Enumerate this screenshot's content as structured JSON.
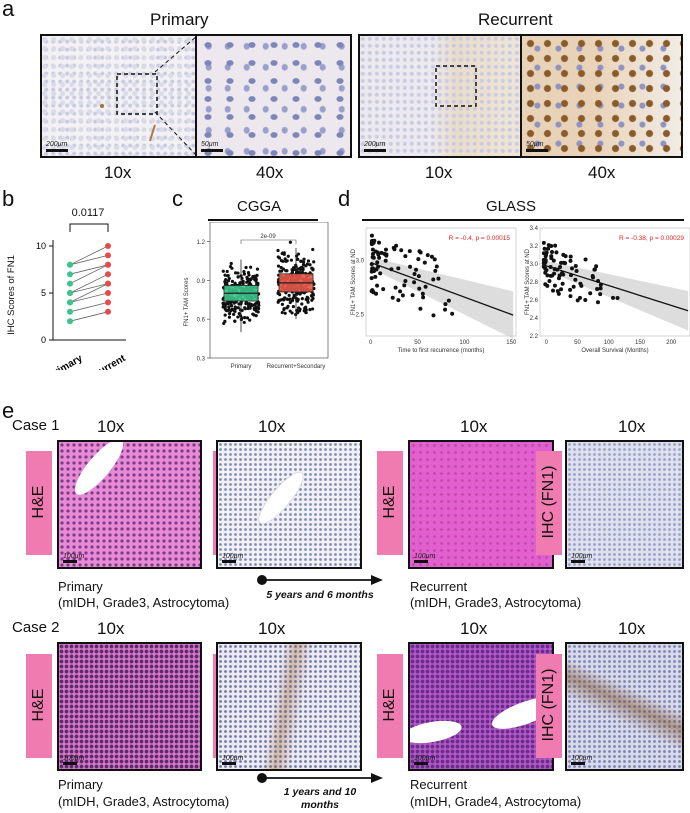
{
  "panel_a": {
    "letter": "a",
    "primary_title": "Primary",
    "recurrent_title": "Recurrent",
    "mag_10x": "10x",
    "mag_40x": "40x",
    "scale_200": "200μm",
    "scale_50": "50μm"
  },
  "panel_b": {
    "letter": "b",
    "p_value": "0.0117",
    "ylabel": "IHC Scores of FN1",
    "chart_data": {
      "type": "line",
      "title": "",
      "ylabel": "IHC Scores of FN1",
      "categories": [
        "Primary",
        "Recurrent"
      ],
      "ylim": [
        0,
        10
      ],
      "yticks": [
        "0",
        "5",
        "10"
      ],
      "pairs": [
        [
          8,
          10
        ],
        [
          8,
          9
        ],
        [
          7,
          8
        ],
        [
          6,
          8
        ],
        [
          5,
          7
        ],
        [
          5,
          6
        ],
        [
          4,
          6
        ],
        [
          4,
          5
        ],
        [
          3,
          4
        ],
        [
          2,
          3
        ]
      ],
      "colors": {
        "primary": "#3cc48c",
        "recurrent": "#e84a4a"
      }
    }
  },
  "panel_c": {
    "letter": "c",
    "title": "CGGA",
    "pval": "2e-09",
    "ylabel": "FN1+ TAM Scores",
    "chart_data": {
      "type": "box",
      "categories": [
        "Primary",
        "Recurrent+Secondary"
      ],
      "yticks": [
        "0.3",
        "0.6",
        "0.9",
        "1.2"
      ],
      "ylim": [
        0.3,
        1.35
      ],
      "boxes": [
        {
          "name": "Primary",
          "q1": 0.74,
          "median": 0.8,
          "q3": 0.86,
          "min": 0.5,
          "max": 1.06,
          "color": "#3cc48c"
        },
        {
          "name": "Recurrent+Secondary",
          "q1": 0.81,
          "median": 0.88,
          "q3": 0.95,
          "min": 0.6,
          "max": 1.15,
          "color": "#e8574a"
        }
      ]
    }
  },
  "panel_d": {
    "letter": "d",
    "title": "GLASS",
    "chart_data": [
      {
        "type": "scatter",
        "annotation": "R = -0.4, p = 0.00015",
        "xlabel": "Time to first recurrence (months)",
        "ylabel": "FN1+ TAM Scores at ND",
        "xticks": [
          "0",
          "50",
          "100",
          "150"
        ],
        "yticks": [
          "2.5",
          "3.0"
        ],
        "xlim": [
          -5,
          155
        ],
        "ylim": [
          2.3,
          3.3
        ],
        "fit": {
          "intercept": 2.98,
          "slope": -0.0032
        }
      },
      {
        "type": "scatter",
        "annotation": "R = -0.38, p = 0.00029",
        "xlabel": "Overall Survival (Months)",
        "ylabel": "FN1+ TAM Scores at ND",
        "xticks": [
          "0",
          "50",
          "100",
          "150",
          "200"
        ],
        "yticks": [
          "2.2",
          "2.4",
          "2.6",
          "2.8",
          "3.0",
          "3.2",
          "3.4"
        ],
        "xlim": [
          -10,
          230
        ],
        "ylim": [
          2.2,
          3.4
        ],
        "fit": {
          "intercept": 2.98,
          "slope": -0.0022
        }
      }
    ]
  },
  "panel_e": {
    "letter": "e",
    "case1": "Case 1",
    "case2": "Case 2",
    "mag_10x": "10x",
    "he_label": "H&E",
    "ihc_label": "IHC (FN1)",
    "scale_100": "100μm",
    "primary": "Primary",
    "recurrent": "Recurrent",
    "case1_primary_detail": "(mIDH, Grade3, Astrocytoma)",
    "case1_recurrent_detail": "(mIDH, Grade3, Astrocytoma)",
    "case1_interval": "5 years and 6 months",
    "case2_primary_detail": "(mIDH, Grade3, Astrocytoma)",
    "case2_recurrent_detail": "(mIDH, Grade4, Astrocytoma)",
    "case2_interval_line1": "1 years and 10",
    "case2_interval_line2": "months"
  }
}
